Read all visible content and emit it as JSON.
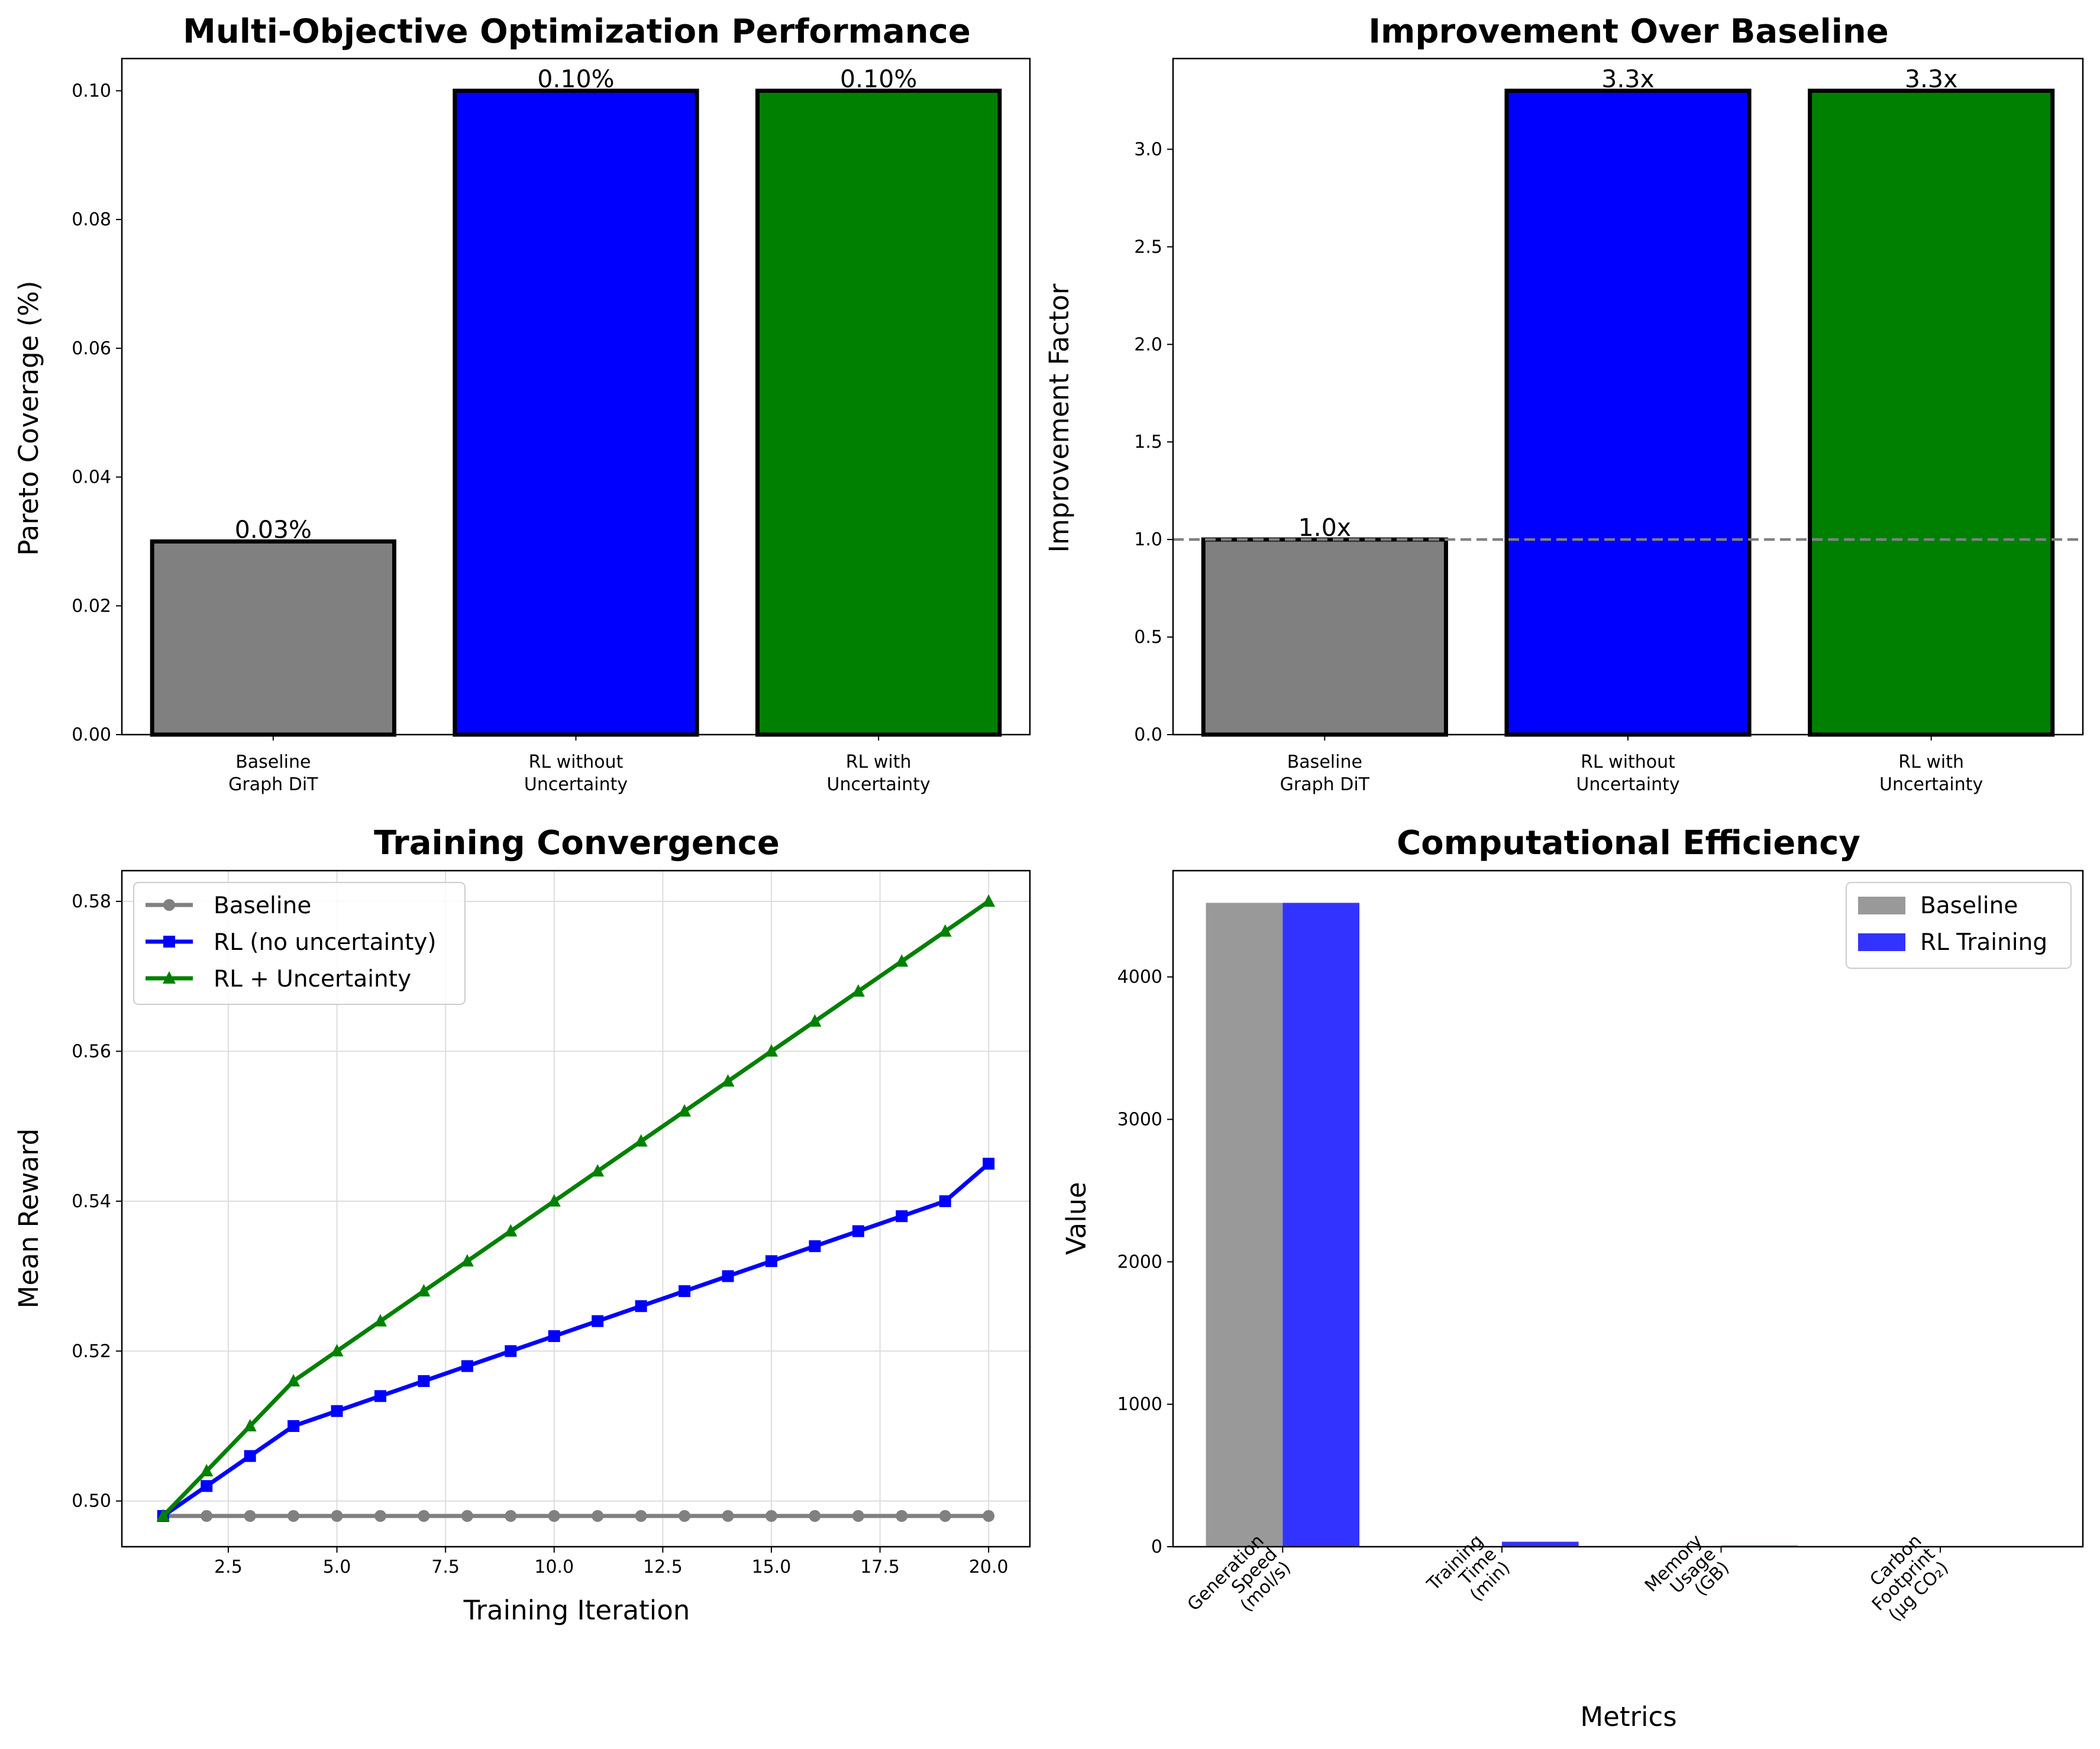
{
  "chart_data": [
    {
      "type": "bar",
      "title": "Multi-Objective Optimization Performance",
      "xlabel": "",
      "ylabel": "Pareto Coverage (%)",
      "categories": [
        [
          "Baseline",
          "Graph DiT"
        ],
        [
          "RL without",
          "Uncertainty"
        ],
        [
          "RL with",
          "Uncertainty"
        ]
      ],
      "values": [
        0.03,
        0.1,
        0.1
      ],
      "data_labels": [
        "0.03%",
        "0.10%",
        "0.10%"
      ],
      "colors": [
        "#808080",
        "#0000ff",
        "#008000"
      ],
      "ylim": [
        0,
        0.105
      ],
      "yticks": [
        0.0,
        0.02,
        0.04,
        0.06,
        0.08,
        0.1
      ],
      "ytick_labels": [
        "0.00",
        "0.02",
        "0.04",
        "0.06",
        "0.08",
        "0.10"
      ],
      "grid": false
    },
    {
      "type": "bar",
      "title": "Improvement Over Baseline",
      "xlabel": "",
      "ylabel": "Improvement Factor",
      "categories": [
        [
          "Baseline",
          "Graph DiT"
        ],
        [
          "RL without",
          "Uncertainty"
        ],
        [
          "RL with",
          "Uncertainty"
        ]
      ],
      "values": [
        1.0,
        3.3,
        3.3
      ],
      "data_labels": [
        "1.0x",
        "3.3x",
        "3.3x"
      ],
      "colors": [
        "#808080",
        "#0000ff",
        "#008000"
      ],
      "ylim": [
        0,
        3.465
      ],
      "yticks": [
        0.0,
        0.5,
        1.0,
        1.5,
        2.0,
        2.5,
        3.0
      ],
      "ytick_labels": [
        "0.0",
        "0.5",
        "1.0",
        "1.5",
        "2.0",
        "2.5",
        "3.0"
      ],
      "reference_line": {
        "y": 1.0,
        "style": "dashed",
        "color": "#808080"
      },
      "grid": false
    },
    {
      "type": "line",
      "title": "Training Convergence",
      "xlabel": "Training Iteration",
      "ylabel": "Mean Reward",
      "x": [
        1,
        2,
        3,
        4,
        5,
        6,
        7,
        8,
        9,
        10,
        11,
        12,
        13,
        14,
        15,
        16,
        17,
        18,
        19,
        20
      ],
      "series": [
        {
          "name": "Baseline",
          "color": "#808080",
          "marker": "circle",
          "values": [
            0.498,
            0.498,
            0.498,
            0.498,
            0.498,
            0.498,
            0.498,
            0.498,
            0.498,
            0.498,
            0.498,
            0.498,
            0.498,
            0.498,
            0.498,
            0.498,
            0.498,
            0.498,
            0.498,
            0.498
          ]
        },
        {
          "name": "RL (no uncertainty)",
          "color": "#0000ff",
          "marker": "square",
          "values": [
            0.498,
            0.502,
            0.506,
            0.51,
            0.512,
            0.514,
            0.516,
            0.518,
            0.52,
            0.522,
            0.524,
            0.526,
            0.528,
            0.53,
            0.532,
            0.534,
            0.536,
            0.538,
            0.54,
            0.545
          ]
        },
        {
          "name": "RL + Uncertainty",
          "color": "#008000",
          "marker": "triangle",
          "values": [
            0.498,
            0.504,
            0.51,
            0.516,
            0.52,
            0.524,
            0.528,
            0.532,
            0.536,
            0.54,
            0.544,
            0.548,
            0.552,
            0.556,
            0.56,
            0.564,
            0.568,
            0.572,
            0.576,
            0.58
          ]
        }
      ],
      "xlim": [
        0.05,
        20.95
      ],
      "ylim": [
        0.4939,
        0.5841
      ],
      "xticks": [
        2.5,
        5.0,
        7.5,
        10.0,
        12.5,
        15.0,
        17.5,
        20.0
      ],
      "xtick_labels": [
        "2.5",
        "5.0",
        "7.5",
        "10.0",
        "12.5",
        "15.0",
        "17.5",
        "20.0"
      ],
      "yticks": [
        0.5,
        0.52,
        0.54,
        0.56,
        0.58
      ],
      "ytick_labels": [
        "0.50",
        "0.52",
        "0.54",
        "0.56",
        "0.58"
      ],
      "legend_position": "top-left",
      "grid": true
    },
    {
      "type": "bar",
      "title": "Computational Efficiency",
      "xlabel": "Metrics",
      "ylabel": "Value",
      "categories": [
        [
          "Generation",
          "Speed",
          "(mol/s)"
        ],
        [
          "Training",
          "Time",
          "(min)"
        ],
        [
          "Memory",
          "Usage",
          "(GB)"
        ],
        [
          "Carbon",
          "Footprint",
          "(μg CO₂)"
        ]
      ],
      "series": [
        {
          "name": "Baseline",
          "color": "#999999",
          "values": [
            4520,
            0,
            0,
            0
          ]
        },
        {
          "name": "RL Training",
          "color": "#3333ff",
          "values": [
            4520,
            35,
            8,
            0
          ]
        }
      ],
      "ylim": [
        0,
        4746
      ],
      "yticks": [
        0,
        1000,
        2000,
        3000,
        4000
      ],
      "ytick_labels": [
        "0",
        "1000",
        "2000",
        "3000",
        "4000"
      ],
      "legend_position": "top-right",
      "grid": false
    }
  ]
}
